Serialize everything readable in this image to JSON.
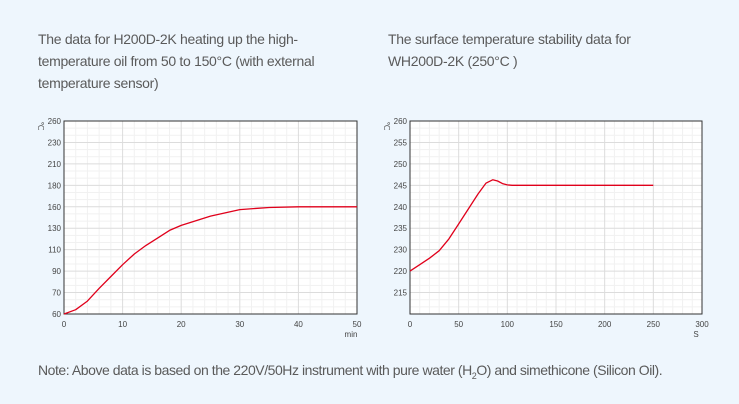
{
  "titles": {
    "left": "The data for H200D-2K heating up the high-temperature oil from 50 to 150°C (with external temperature sensor)",
    "right": "The surface temperature stability data for WH200D-2K (250°C )"
  },
  "note": {
    "prefix": "Note: Above data is based on the 220V/50Hz instrument with pure water (H",
    "sub": "2",
    "suffix": "O) and simethicone (Silicon Oil)."
  },
  "chart_data": [
    {
      "type": "line",
      "title": "",
      "xlabel": "min",
      "ylabel": "℃",
      "xlim": [
        0,
        50
      ],
      "x_ticks": [
        0,
        10,
        20,
        30,
        40,
        50
      ],
      "y_ticks": [
        260,
        230,
        210,
        180,
        160,
        130,
        110,
        90,
        70,
        60
      ],
      "y_tick_labels": [
        "260",
        "230",
        "210",
        "180",
        "160",
        "130",
        "110",
        "90",
        "70",
        "60"
      ],
      "grid": true,
      "color": "#e0001b",
      "series": [
        {
          "name": "temperature",
          "x": [
            0,
            2,
            4,
            6,
            8,
            10,
            12,
            14,
            16,
            18,
            20,
            25,
            30,
            35,
            40,
            45,
            50
          ],
          "y": [
            60,
            62,
            66,
            74,
            85,
            96,
            106,
            114,
            121,
            128,
            134,
            147,
            156,
            159,
            160,
            160,
            160
          ]
        }
      ]
    },
    {
      "type": "line",
      "title": "",
      "xlabel": "S",
      "ylabel": "℃",
      "xlim": [
        0,
        300
      ],
      "x_ticks": [
        0,
        50,
        100,
        150,
        200,
        250,
        300
      ],
      "y_ticks": [
        260,
        255,
        250,
        245,
        240,
        235,
        230,
        220,
        215,
        210
      ],
      "y_tick_labels": [
        "260",
        "255",
        "250",
        "245",
        "240",
        "235",
        "230",
        "220",
        "215",
        ""
      ],
      "grid": true,
      "color": "#e0001b",
      "series": [
        {
          "name": "temperature",
          "x": [
            0,
            10,
            20,
            30,
            40,
            50,
            60,
            70,
            78,
            85,
            90,
            95,
            100,
            105,
            150,
            200,
            250
          ],
          "y": [
            220,
            223,
            226,
            229.5,
            232.5,
            236,
            239.5,
            243,
            245.5,
            246.3,
            246.0,
            245.4,
            245.1,
            245,
            245,
            245,
            245
          ]
        }
      ]
    }
  ]
}
